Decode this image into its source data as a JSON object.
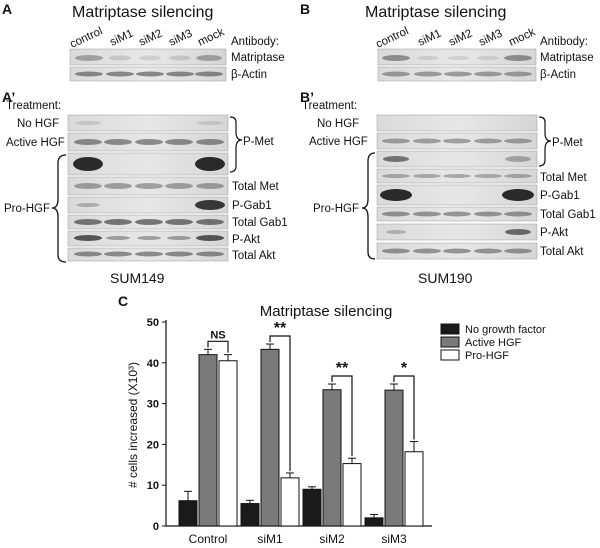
{
  "panelA": {
    "letter": "A",
    "sub_letter": "A’",
    "title": "Matriptase silencing",
    "lanes": [
      "control",
      "siM1",
      "siM2",
      "siM3",
      "mock"
    ],
    "antibody_label": "Antibody:",
    "antibody_rows": [
      "Matriptase",
      "β-Actin"
    ],
    "treatment_label": "Treatment:",
    "treatments": [
      "No HGF",
      "Active HGF",
      "Pro-HGF"
    ],
    "blot_labels": [
      "P-Met",
      "Total Met",
      "P-Gab1",
      "Total Gab1",
      "P-Akt",
      "Total Akt"
    ],
    "cell_line": "SUM149"
  },
  "panelB": {
    "letter": "B",
    "sub_letter": "B’",
    "title": "Matriptase silencing",
    "lanes": [
      "control",
      "siM1",
      "siM2",
      "siM3",
      "mock"
    ],
    "antibody_label": "Antibody:",
    "antibody_rows": [
      "Matriptase",
      "β-Actin"
    ],
    "treatment_label": "Treatment:",
    "treatments": [
      "No HGF",
      "Active HGF",
      "Pro-HGF"
    ],
    "blot_labels": [
      "P-Met",
      "Total Met",
      "P-Gab1",
      "Total Gab1",
      "P-Akt",
      "Total Akt"
    ],
    "cell_line": "SUM190"
  },
  "panelC": {
    "letter": "C"
  },
  "chart_data": {
    "type": "bar",
    "title": "Matriptase silencing",
    "xlabel": "",
    "ylabel": "# cells increased (X10³)",
    "ylim": [
      0,
      50
    ],
    "yticks": [
      "0",
      "10",
      "20",
      "30",
      "40",
      "50"
    ],
    "categories": [
      "Control",
      "siM1",
      "siM2",
      "siM3"
    ],
    "legend_position": "top-right",
    "series": [
      {
        "name": "No growth factor",
        "color": "#1a1a1a",
        "values": [
          6.2,
          5.5,
          9.0,
          2.0
        ],
        "errors": [
          2.3,
          0.8,
          0.6,
          0.8
        ]
      },
      {
        "name": "Active HGF",
        "color": "#7a7a7a",
        "values": [
          42.0,
          43.3,
          33.4,
          33.3
        ],
        "errors": [
          1.3,
          1.3,
          1.4,
          1.5
        ]
      },
      {
        "name": "Pro-HGF",
        "color": "#ffffff",
        "values": [
          40.5,
          11.8,
          15.3,
          18.2
        ],
        "errors": [
          1.5,
          1.2,
          1.3,
          2.5
        ]
      }
    ],
    "annotations": [
      "NS",
      "**",
      "**",
      "*"
    ]
  }
}
